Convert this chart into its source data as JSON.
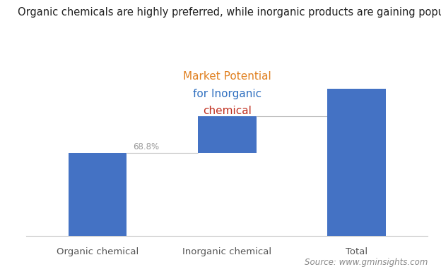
{
  "categories": [
    "Organic chemical",
    "Inorganic chemical",
    "Total"
  ],
  "organic_value": 45,
  "inorganic_value": 20,
  "total_value": 80,
  "ylim_max": 100,
  "bar_color": "#4472C4",
  "connector_color": "#bbbbbb",
  "label_text": "68.8%",
  "annotation_line1": "Market Potential",
  "annotation_line2": "for Inorganic",
  "annotation_line3": "chemical",
  "annotation_colors": [
    "#e67e22",
    "#3498db",
    "#e74c3c",
    "#2ecc71",
    "#9b59b6",
    "#f39c12",
    "#1abc9c",
    "#e67e22",
    "#3498db"
  ],
  "title": "Organic chemicals are highly preferred, while inorganic products are gaining popularity",
  "source_text": "Source: www.gminsights.com",
  "title_fontsize": 10.5,
  "axis_label_fontsize": 9.5,
  "annotation_fontsize": 11,
  "source_fontsize": 8.5,
  "bar_width": 0.45,
  "background_color": "#ffffff",
  "footer_color": "#e8e8e8"
}
